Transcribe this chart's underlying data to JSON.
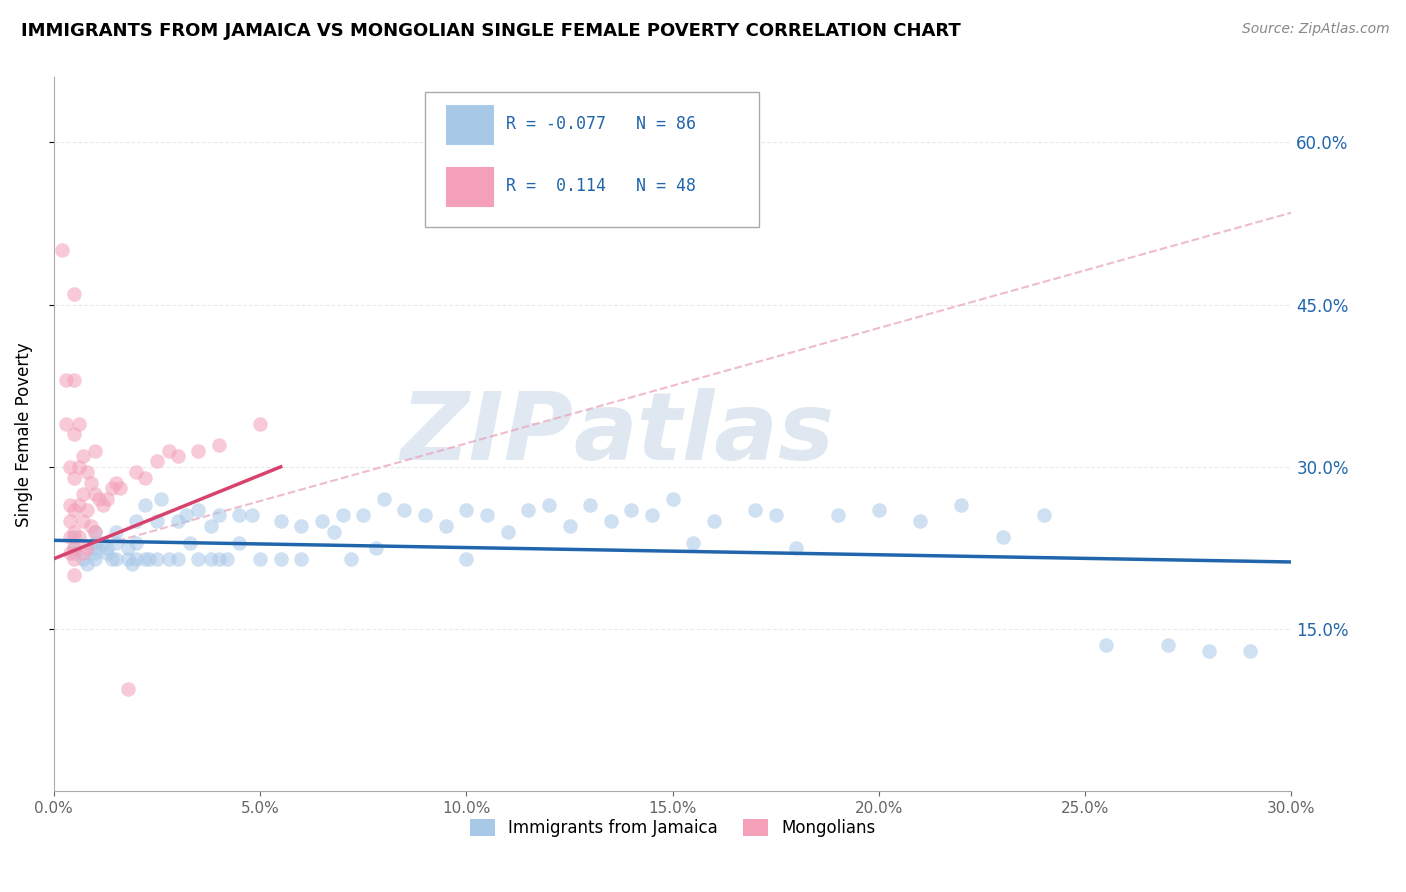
{
  "title": "IMMIGRANTS FROM JAMAICA VS MONGOLIAN SINGLE FEMALE POVERTY CORRELATION CHART",
  "source": "Source: ZipAtlas.com",
  "ylabel": "Single Female Poverty",
  "legend_label1": "Immigrants from Jamaica",
  "legend_label2": "Mongolians",
  "r1": "-0.077",
  "n1": "86",
  "r2": "0.114",
  "n2": "48",
  "blue_color": "#a8c8e8",
  "pink_color": "#f4a0b8",
  "blue_line_color": "#2166ac",
  "pink_line_color": "#d6446e",
  "dashed_line_color": "#e8a0b8",
  "xlim": [
    0.0,
    0.3
  ],
  "ylim": [
    0.0,
    0.66
  ],
  "yticks": [
    0.15,
    0.3,
    0.45,
    0.6
  ],
  "ytick_labels": [
    "15.0%",
    "30.0%",
    "45.0%",
    "60.0%"
  ],
  "xticks": [
    0.0,
    0.05,
    0.1,
    0.15,
    0.2,
    0.25,
    0.3
  ],
  "xtick_labels": [
    "0.0%",
    "5.0%",
    "10.0%",
    "15.0%",
    "20.0%",
    "25.0%",
    "30.0%"
  ],
  "blue_scatter_x": [
    0.005,
    0.005,
    0.005,
    0.007,
    0.008,
    0.01,
    0.01,
    0.01,
    0.01,
    0.01,
    0.012,
    0.013,
    0.013,
    0.014,
    0.015,
    0.015,
    0.015,
    0.018,
    0.018,
    0.019,
    0.02,
    0.02,
    0.02,
    0.022,
    0.022,
    0.023,
    0.025,
    0.025,
    0.026,
    0.028,
    0.03,
    0.03,
    0.032,
    0.033,
    0.035,
    0.035,
    0.038,
    0.038,
    0.04,
    0.04,
    0.042,
    0.045,
    0.045,
    0.048,
    0.05,
    0.055,
    0.055,
    0.06,
    0.06,
    0.065,
    0.068,
    0.07,
    0.072,
    0.075,
    0.078,
    0.08,
    0.085,
    0.09,
    0.095,
    0.1,
    0.1,
    0.105,
    0.11,
    0.115,
    0.12,
    0.125,
    0.13,
    0.135,
    0.14,
    0.145,
    0.15,
    0.155,
    0.16,
    0.17,
    0.175,
    0.18,
    0.19,
    0.2,
    0.21,
    0.22,
    0.23,
    0.24,
    0.255,
    0.27,
    0.28,
    0.29
  ],
  "blue_scatter_y": [
    0.235,
    0.225,
    0.22,
    0.215,
    0.21,
    0.24,
    0.23,
    0.225,
    0.22,
    0.215,
    0.23,
    0.225,
    0.22,
    0.215,
    0.24,
    0.23,
    0.215,
    0.225,
    0.215,
    0.21,
    0.23,
    0.25,
    0.215,
    0.265,
    0.215,
    0.215,
    0.25,
    0.215,
    0.27,
    0.215,
    0.25,
    0.215,
    0.255,
    0.23,
    0.26,
    0.215,
    0.245,
    0.215,
    0.255,
    0.215,
    0.215,
    0.255,
    0.23,
    0.255,
    0.215,
    0.25,
    0.215,
    0.245,
    0.215,
    0.25,
    0.24,
    0.255,
    0.215,
    0.255,
    0.225,
    0.27,
    0.26,
    0.255,
    0.245,
    0.26,
    0.215,
    0.255,
    0.24,
    0.26,
    0.265,
    0.245,
    0.265,
    0.25,
    0.26,
    0.255,
    0.27,
    0.23,
    0.25,
    0.26,
    0.255,
    0.225,
    0.255,
    0.26,
    0.25,
    0.265,
    0.235,
    0.255,
    0.135,
    0.135,
    0.13,
    0.13
  ],
  "pink_scatter_x": [
    0.002,
    0.003,
    0.003,
    0.004,
    0.004,
    0.004,
    0.004,
    0.004,
    0.005,
    0.005,
    0.005,
    0.005,
    0.005,
    0.005,
    0.005,
    0.005,
    0.005,
    0.006,
    0.006,
    0.006,
    0.006,
    0.007,
    0.007,
    0.007,
    0.007,
    0.008,
    0.008,
    0.008,
    0.009,
    0.009,
    0.01,
    0.01,
    0.01,
    0.011,
    0.012,
    0.013,
    0.014,
    0.015,
    0.016,
    0.018,
    0.02,
    0.022,
    0.025,
    0.028,
    0.03,
    0.035,
    0.04,
    0.05
  ],
  "pink_scatter_y": [
    0.5,
    0.38,
    0.34,
    0.3,
    0.265,
    0.25,
    0.235,
    0.22,
    0.46,
    0.38,
    0.33,
    0.29,
    0.26,
    0.24,
    0.225,
    0.215,
    0.2,
    0.34,
    0.3,
    0.265,
    0.235,
    0.31,
    0.275,
    0.25,
    0.22,
    0.295,
    0.26,
    0.225,
    0.285,
    0.245,
    0.315,
    0.275,
    0.24,
    0.27,
    0.265,
    0.27,
    0.28,
    0.285,
    0.28,
    0.095,
    0.295,
    0.29,
    0.305,
    0.315,
    0.31,
    0.315,
    0.32,
    0.34
  ],
  "blue_line_x": [
    0.0,
    0.3
  ],
  "blue_line_y": [
    0.232,
    0.212
  ],
  "pink_line_x": [
    0.0,
    0.055
  ],
  "pink_line_y": [
    0.215,
    0.3
  ],
  "dashed_line_x": [
    0.0,
    0.3
  ],
  "dashed_line_y": [
    0.215,
    0.535
  ],
  "watermark_zip": "ZIP",
  "watermark_atlas": "atlas"
}
